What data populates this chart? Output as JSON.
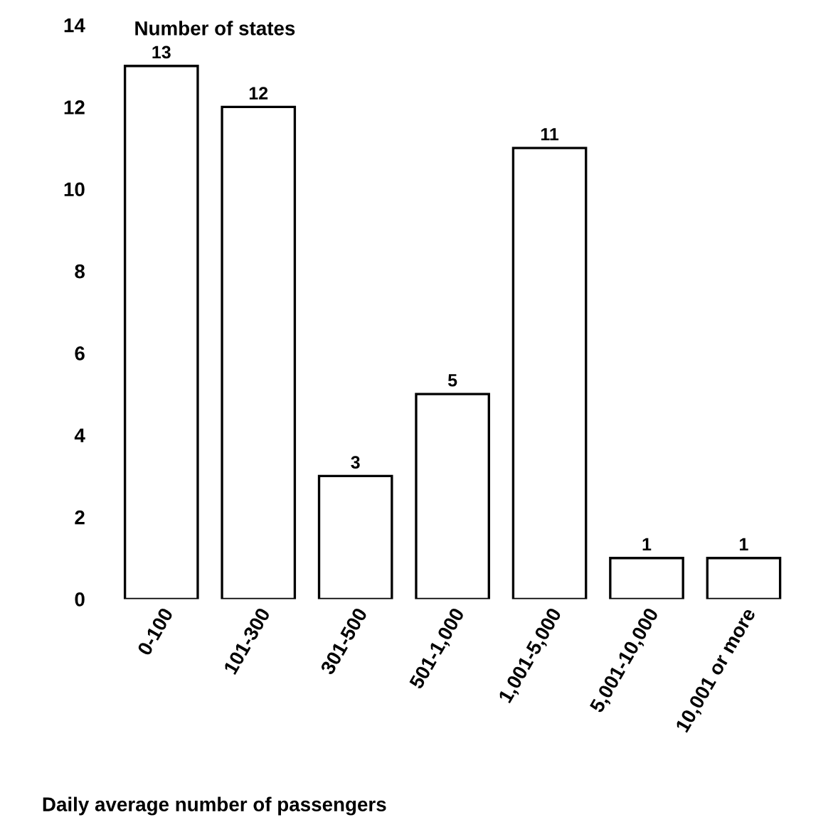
{
  "chart_data": {
    "type": "bar",
    "ylabel": "Number of states",
    "xlabel": "Daily average number of passengers",
    "categories": [
      "0-100",
      "101-300",
      "301-500",
      "501-1,000",
      "1,001-5,000",
      "5,001-10,000",
      "10,001 or more"
    ],
    "values": [
      13,
      12,
      3,
      5,
      11,
      1,
      1
    ],
    "color": "#ffffff",
    "ylim": [
      0,
      14
    ],
    "yticks": [
      0,
      2,
      4,
      6,
      8,
      10,
      12,
      14
    ],
    "data_labels": true,
    "grid": false
  }
}
